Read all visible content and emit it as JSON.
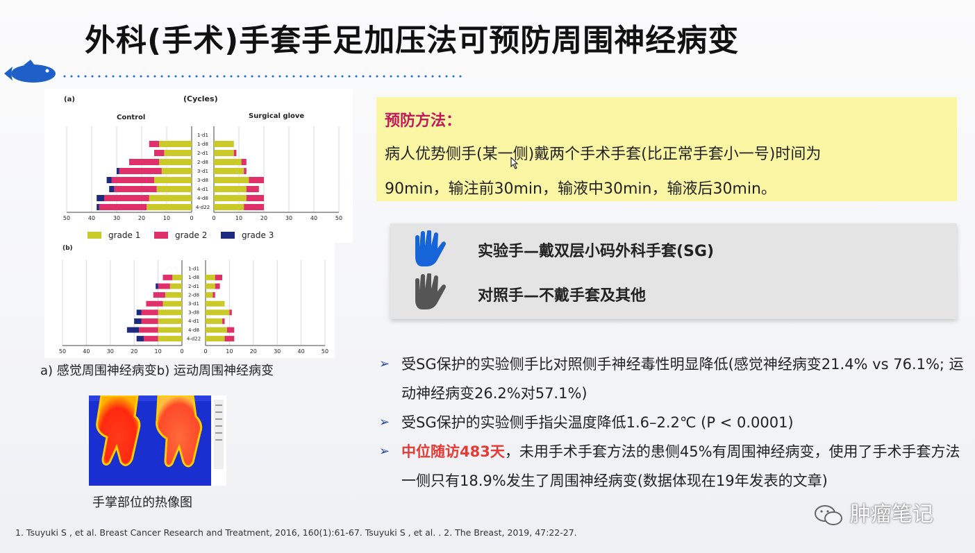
{
  "title": "外科(手术)手套手足加压法可预防周围神经病变",
  "figure_a": {
    "label": "(a)",
    "unit": "(Cycles)",
    "left_title": "Control",
    "right_title": "Surgical glove",
    "legend": [
      "grade 1",
      "grade 2",
      "grade 3"
    ],
    "colors": {
      "grade1": "#c9c928",
      "grade2": "#e0306a",
      "grade3": "#1c2a80"
    }
  },
  "chart_data": [
    {
      "type": "bar",
      "title": "",
      "categories": [
        "1-d1",
        "1-d8",
        "2-d1",
        "2-d8",
        "3-d1",
        "3-d8",
        "4-d1",
        "4-d8",
        "4-d22"
      ],
      "series": [
        {
          "name": "grade 1",
          "values": [
            0,
            13,
            11,
            13,
            12,
            15,
            14,
            17,
            18
          ]
        },
        {
          "name": "grade 2",
          "values": [
            0,
            4,
            4,
            12,
            17,
            17,
            17,
            18,
            19
          ]
        },
        {
          "name": "grade 3",
          "values": [
            0,
            0,
            0,
            0,
            1,
            2,
            2,
            3,
            1
          ]
        }
      ],
      "xlim": [
        0,
        50
      ],
      "ticks": [
        "50",
        "40",
        "30",
        "20",
        "10",
        "0"
      ]
    },
    {
      "type": "bar",
      "title": "",
      "categories": [
        "1-d1",
        "1-d8",
        "2-d1",
        "2-d8",
        "3-d1",
        "3-d8",
        "4-d1",
        "4-d8",
        "4-d22"
      ],
      "series": [
        {
          "name": "grade 1",
          "values": [
            0,
            8,
            8,
            11,
            12,
            14,
            13,
            13,
            12
          ]
        },
        {
          "name": "grade 2",
          "values": [
            0,
            0,
            1,
            2,
            1,
            6,
            5,
            7,
            8
          ]
        },
        {
          "name": "grade 3",
          "values": [
            0,
            0,
            0,
            0,
            0,
            0,
            0,
            0,
            0
          ]
        }
      ],
      "xlim": [
        0,
        50
      ],
      "ticks": [
        "0",
        "10",
        "20",
        "30",
        "40",
        "50"
      ]
    },
    {
      "type": "bar",
      "title": "",
      "categories": [
        "1-d1",
        "1-d8",
        "2-d1",
        "2-d8",
        "3-d1",
        "3-d8",
        "4-d1",
        "4-d8",
        "4-d22"
      ],
      "series": [
        {
          "name": "grade 1",
          "values": [
            0,
            4,
            5,
            7,
            8,
            10,
            10,
            10,
            10
          ]
        },
        {
          "name": "grade 2",
          "values": [
            0,
            4,
            5,
            5,
            7,
            7,
            7,
            8,
            6
          ]
        },
        {
          "name": "grade 3",
          "values": [
            0,
            0,
            1,
            0,
            0,
            2,
            3,
            5,
            3
          ]
        }
      ],
      "xlim": [
        0,
        50
      ],
      "ticks": [
        "50",
        "40",
        "30",
        "20",
        "10",
        "0"
      ]
    },
    {
      "type": "bar",
      "title": "",
      "categories": [
        "1-d1",
        "1-d8",
        "2-d1",
        "2-d8",
        "3-d1",
        "3-d8",
        "4-d1",
        "4-d8",
        "4-d22"
      ],
      "series": [
        {
          "name": "grade 1",
          "values": [
            0,
            4,
            4,
            3,
            8,
            10,
            7,
            9,
            8
          ]
        },
        {
          "name": "grade 2",
          "values": [
            0,
            3,
            2,
            1,
            0,
            1,
            1,
            3,
            4
          ]
        },
        {
          "name": "grade 3",
          "values": [
            0,
            0,
            0,
            0,
            0,
            0,
            0,
            0,
            0
          ]
        }
      ],
      "xlim": [
        0,
        50
      ],
      "ticks": [
        "0",
        "10",
        "20",
        "30",
        "40",
        "50"
      ]
    }
  ],
  "figure_b": {
    "label": "(b)"
  },
  "caption_ab": "a) 感觉周围神经病变b) 运动周围神经病变",
  "caption_thermal": "手掌部位的热像图",
  "method": {
    "title": "预防方法：",
    "line1": "病人优势侧手(某一侧)戴两个手术手套(比正常手套小一号)时间为",
    "line2": "90min，输注前30min，输液中30min，输液后30min。"
  },
  "hands": {
    "experimental": "实验手—戴双层小码外科手套(SG)",
    "control": "对照手—不戴手套及其他",
    "colors": {
      "experimental": "#1565d8",
      "control": "#555555"
    }
  },
  "bullets": {
    "b1": "受SG保护的实验侧手比对照侧手神经毒性明显降低(感觉神经病变21.4% vs 76.1%; 运动神经病变26.2%对57.1%)",
    "b2": "受SG保护的实验侧手指尖温度降低1.6–2.2℃ (P < 0.0001)",
    "b3_highlight": "中位随访483天",
    "b3_rest": "，未用手术手套方法的患侧45%有周围神经病变，使用了手术手套方法一侧只有18.9%发生了周围神经病变(数据体现在19年发表的文章)"
  },
  "reference": "1. Tsuyuki S , et al. Breast Cancer Research and Treatment, 2016, 160(1):61-67. Tsuyuki S , et al. . 2. The Breast, 2019, 47:22-27.",
  "watermark": "肿瘤笔记"
}
